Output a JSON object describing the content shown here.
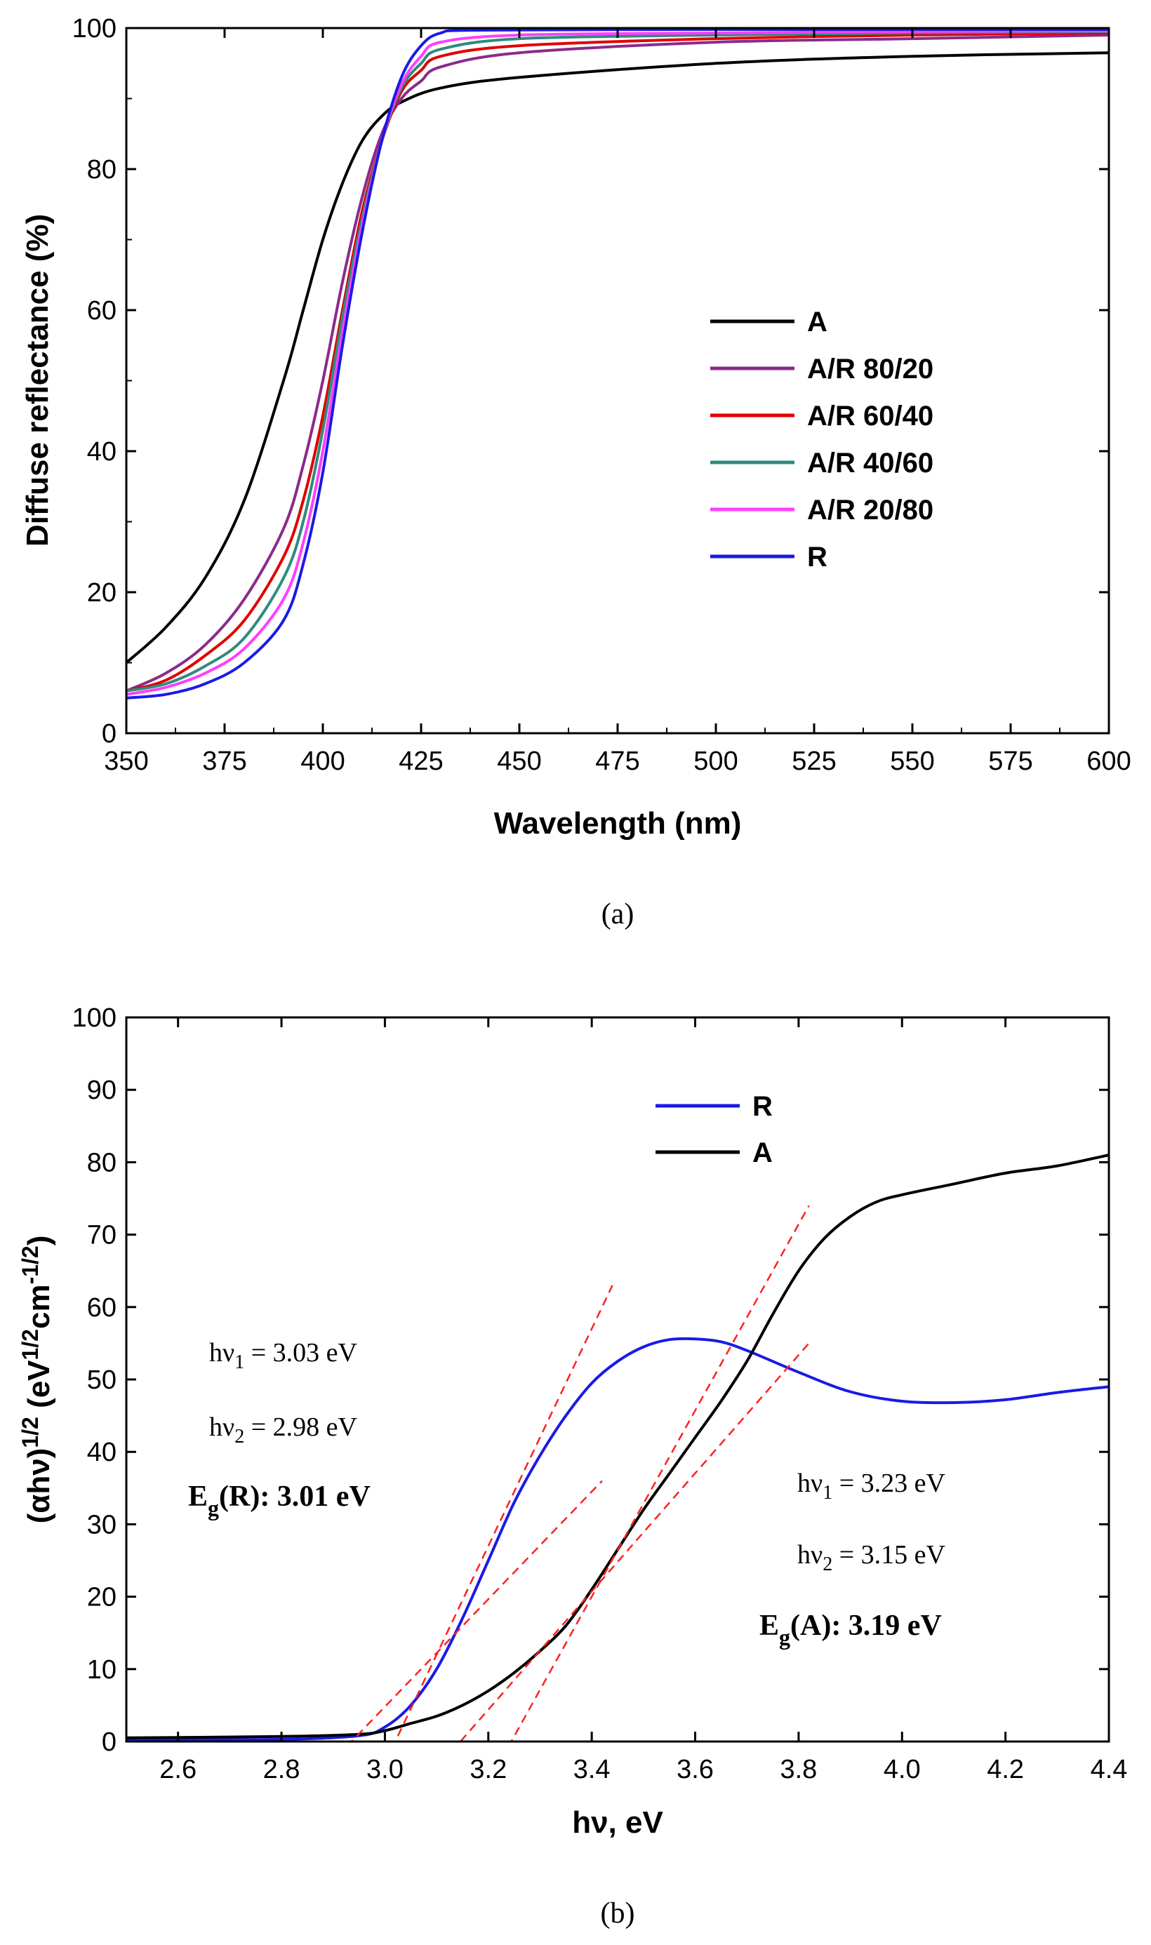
{
  "chart_data": [
    {
      "id": "a",
      "type": "line",
      "caption": "(a)",
      "xlabel": "Wavelength (nm)",
      "ylabel": "Diffuse reflectance (%)",
      "xlim": [
        350,
        600
      ],
      "ylim": [
        0,
        100
      ],
      "xticks": [
        350,
        375,
        400,
        425,
        450,
        475,
        500,
        525,
        550,
        575,
        600
      ],
      "yticks": [
        0,
        20,
        40,
        60,
        80,
        100
      ],
      "legend_position": "center-right",
      "series": [
        {
          "name": "A",
          "color": "#000000",
          "x": [
            350,
            360,
            370,
            380,
            390,
            395,
            400,
            405,
            410,
            415,
            420,
            430,
            450,
            500,
            550,
            600
          ],
          "y": [
            10,
            15,
            22,
            33,
            50,
            60,
            70,
            78,
            84,
            87.5,
            89.5,
            91.5,
            93,
            95,
            96,
            96.5
          ]
        },
        {
          "name": "A/R 80/20",
          "color": "#8B2A8B",
          "x": [
            350,
            360,
            370,
            380,
            390,
            395,
            400,
            405,
            410,
            415,
            420,
            425,
            430,
            450,
            500,
            550,
            600
          ],
          "y": [
            6,
            8.5,
            12.5,
            19,
            29,
            38,
            50,
            64,
            76,
            85,
            90,
            92.5,
            94.5,
            96.5,
            98,
            98.5,
            99
          ]
        },
        {
          "name": "A/R 60/40",
          "color": "#E00000",
          "x": [
            350,
            360,
            370,
            380,
            390,
            395,
            400,
            405,
            410,
            415,
            420,
            425,
            430,
            450,
            500,
            550,
            600
          ],
          "y": [
            6,
            7.5,
            11,
            16,
            25,
            33,
            45,
            60,
            74,
            84,
            91,
            94,
            96,
            97.5,
            98.5,
            99,
            99.3
          ]
        },
        {
          "name": "A/R 40/60",
          "color": "#2E8B7D",
          "x": [
            350,
            360,
            370,
            380,
            390,
            395,
            400,
            405,
            410,
            415,
            420,
            425,
            430,
            450,
            500,
            550,
            600
          ],
          "y": [
            6,
            7,
            9.5,
            13.5,
            22,
            30,
            43,
            59,
            73,
            84,
            91.5,
            95,
            97,
            98.5,
            99,
            99.3,
            99.5
          ]
        },
        {
          "name": "A/R 20/80",
          "color": "#FF3EFF",
          "x": [
            350,
            360,
            370,
            380,
            390,
            395,
            400,
            405,
            410,
            415,
            420,
            425,
            430,
            450,
            500,
            550,
            600
          ],
          "y": [
            5.5,
            6.5,
            8.5,
            12,
            19,
            27,
            40,
            57,
            72,
            84,
            92,
            96,
            98,
            99,
            99.3,
            99.5,
            99.6
          ]
        },
        {
          "name": "R",
          "color": "#1A1AE6",
          "x": [
            350,
            360,
            370,
            380,
            390,
            395,
            400,
            405,
            410,
            415,
            420,
            425,
            430,
            440,
            500,
            550,
            600
          ],
          "y": [
            5,
            5.5,
            7,
            10,
            16,
            24,
            37,
            55,
            71,
            84,
            93,
            97.5,
            99.3,
            99.7,
            99.8,
            99.8,
            99.8
          ]
        }
      ]
    },
    {
      "id": "b",
      "type": "line",
      "caption": "(b)",
      "xlabel": "hν, eV",
      "ylabel_parts": [
        "(αhν)",
        "1/2",
        " (eV",
        "1/2",
        "cm",
        "-1/2",
        ")"
      ],
      "xlim": [
        2.5,
        4.4
      ],
      "ylim": [
        0,
        100
      ],
      "xticks": [
        2.6,
        2.8,
        3.0,
        3.2,
        3.4,
        3.6,
        3.8,
        4.0,
        4.2,
        4.4
      ],
      "xtick_labels": [
        "2.6",
        "2.8",
        "3.0",
        "3.2",
        "3.4",
        "3.6",
        "3.8",
        "4.0",
        "4.2",
        "4.4"
      ],
      "yticks": [
        0,
        10,
        20,
        30,
        40,
        50,
        60,
        70,
        80,
        90,
        100
      ],
      "legend_position": "top-center",
      "series": [
        {
          "name": "R",
          "color": "#1A1AE6",
          "x": [
            2.5,
            2.8,
            2.95,
            3.0,
            3.05,
            3.1,
            3.15,
            3.2,
            3.25,
            3.3,
            3.35,
            3.4,
            3.45,
            3.5,
            3.55,
            3.6,
            3.65,
            3.7,
            3.8,
            3.9,
            4.0,
            4.1,
            4.2,
            4.3,
            4.4
          ],
          "y": [
            0.3,
            0.3,
            0.8,
            2,
            5,
            10,
            17,
            25,
            33,
            39.5,
            45,
            49.5,
            52.5,
            54.5,
            55.5,
            55.6,
            55.2,
            54,
            51,
            48.3,
            47,
            46.8,
            47.2,
            48.2,
            49
          ]
        },
        {
          "name": "A",
          "color": "#000000",
          "x": [
            2.5,
            2.8,
            2.95,
            3.0,
            3.05,
            3.1,
            3.15,
            3.2,
            3.25,
            3.3,
            3.35,
            3.4,
            3.45,
            3.5,
            3.55,
            3.6,
            3.65,
            3.7,
            3.75,
            3.8,
            3.85,
            3.9,
            3.95,
            4.0,
            4.1,
            4.2,
            4.3,
            4.4
          ],
          "y": [
            0.5,
            0.7,
            1,
            1.5,
            2.5,
            3.5,
            5,
            7,
            9.5,
            12.5,
            16,
            21,
            26.5,
            32,
            37,
            42,
            47,
            52.5,
            59,
            65,
            69.5,
            72.5,
            74.5,
            75.5,
            77,
            78.5,
            79.5,
            81
          ]
        }
      ],
      "tangent_lines": [
        {
          "name": "tangent-R-1",
          "x": [
            2.92,
            3.44
          ],
          "y": [
            -15,
            63
          ]
        },
        {
          "name": "tangent-R-2",
          "x": [
            2.72,
            3.42
          ],
          "y": [
            -16,
            36
          ]
        },
        {
          "name": "tangent-A-1",
          "x": [
            2.95,
            3.82
          ],
          "y": [
            -16,
            55
          ]
        },
        {
          "name": "tangent-A-2",
          "x": [
            3.12,
            3.82
          ],
          "y": [
            -16,
            74
          ]
        }
      ],
      "annotations": {
        "R_hv1": {
          "base": "hν",
          "sub": "1",
          "rest": " = 3.03 eV"
        },
        "R_hv2": {
          "base": "hν",
          "sub": "2",
          "rest": " = 2.98 eV"
        },
        "R_eg": {
          "base": "E",
          "sub": "g",
          "rest": "(R): 3.01 eV"
        },
        "A_hv1": {
          "base": "hν",
          "sub": "1",
          "rest": " = 3.23 eV"
        },
        "A_hv2": {
          "base": "hν",
          "sub": "2",
          "rest": " = 3.15 eV"
        },
        "A_eg": {
          "base": "E",
          "sub": "g",
          "rest": "(A): 3.19 eV"
        }
      },
      "tangent_color": "#FF2020"
    }
  ]
}
